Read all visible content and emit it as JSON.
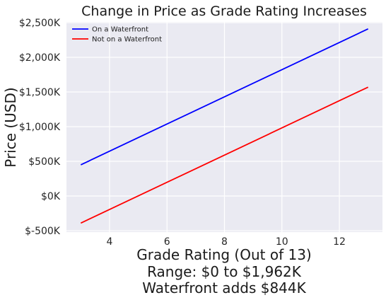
{
  "chart_data": {
    "type": "line",
    "title": "Change in Price as Grade Rating Increases",
    "ylabel": "Price (USD)",
    "xlabel_lines": [
      "Grade Rating (Out of 13)",
      "Range: $0 to $1,962K",
      "Waterfront adds $844K"
    ],
    "x": [
      3,
      13
    ],
    "xlim": [
      2.5,
      13.5
    ],
    "ylim": [
      -520,
      2510
    ],
    "xticks": [
      4,
      6,
      8,
      10,
      12
    ],
    "xtick_labels": [
      "4",
      "6",
      "8",
      "10",
      "12"
    ],
    "yticks": [
      -500,
      0,
      500,
      1000,
      1500,
      2000,
      2500
    ],
    "ytick_labels": [
      "$-500K",
      "$0K",
      "$500K",
      "$1,000K",
      "$1,500K",
      "$2,000K",
      "$2,500K"
    ],
    "grid": true,
    "legend_position": "top-left",
    "series": [
      {
        "name": "On a Waterfront",
        "color": "#0000ff",
        "values": [
          450,
          2410
        ]
      },
      {
        "name": "Not on a Waterfront",
        "color": "#ff0000",
        "values": [
          -390,
          1570
        ]
      }
    ]
  }
}
